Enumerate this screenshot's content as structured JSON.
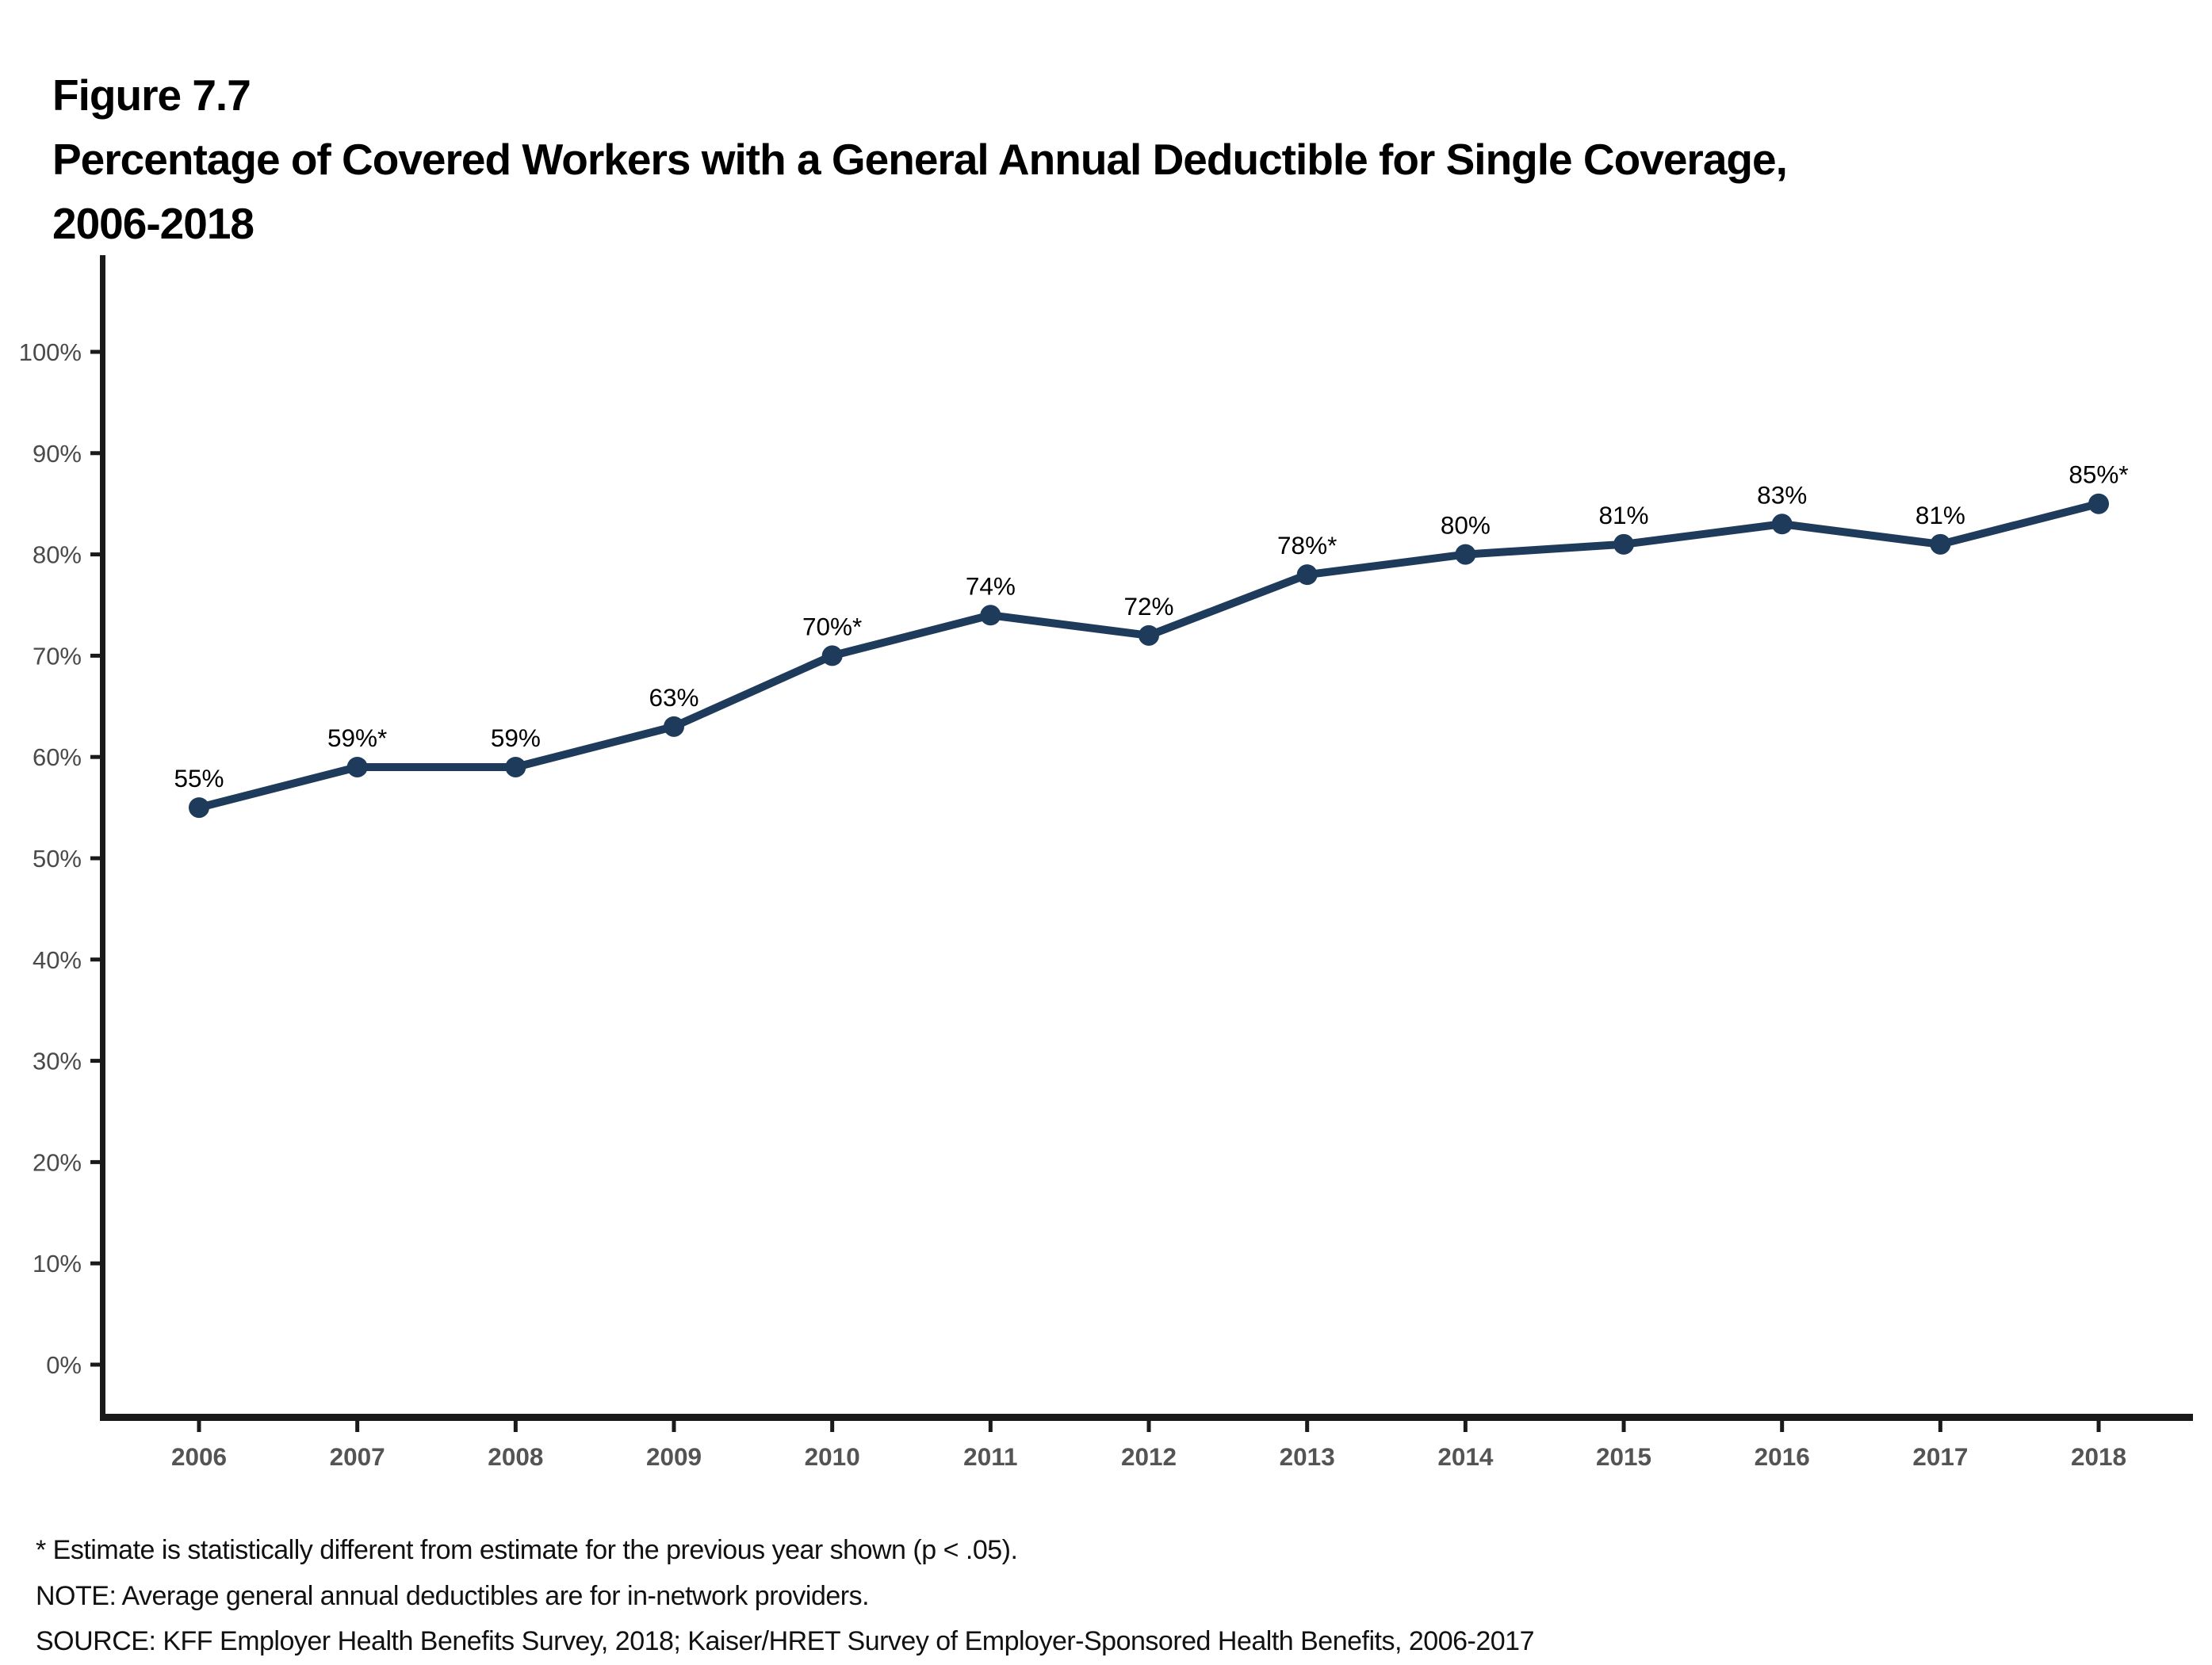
{
  "figure": {
    "label": "Figure 7.7",
    "title_line1": "Percentage of Covered Workers with a General Annual Deductible for Single Coverage,",
    "title_line2": "2006-2018"
  },
  "chart_data": {
    "type": "line",
    "title": "Percentage of Covered Workers with a General Annual Deductible for Single Coverage, 2006-2018",
    "categories": [
      "2006",
      "2007",
      "2008",
      "2009",
      "2010",
      "2011",
      "2012",
      "2013",
      "2014",
      "2015",
      "2016",
      "2017",
      "2018"
    ],
    "values": [
      55,
      59,
      59,
      63,
      70,
      74,
      72,
      78,
      80,
      81,
      83,
      81,
      85
    ],
    "point_labels": [
      "55%",
      "59%*",
      "59%",
      "63%",
      "70%*",
      "74%",
      "72%",
      "78%*",
      "80%",
      "81%",
      "83%",
      "81%",
      "85%*"
    ],
    "xlabel": "",
    "ylabel": "",
    "ylim": [
      0,
      100
    ],
    "ytick_labels": [
      "0%",
      "10%",
      "20%",
      "30%",
      "40%",
      "50%",
      "60%",
      "70%",
      "80%",
      "90%",
      "100%"
    ],
    "grid": false,
    "legend_position": "none",
    "colors": {
      "line": "#1F3B5C",
      "marker": "#1F3B5C",
      "axis": "#1a1a1a",
      "y_tick_label": "#4a4a4a",
      "x_tick_label": "#545454",
      "data_label": "#000000"
    }
  },
  "footnotes": [
    "* Estimate is statistically different from estimate for the previous year shown (p < .05).",
    "NOTE: Average general annual deductibles are for in-network providers.",
    "SOURCE: KFF Employer Health Benefits Survey, 2018; Kaiser/HRET Survey of Employer-Sponsored Health Benefits, 2006-2017"
  ]
}
